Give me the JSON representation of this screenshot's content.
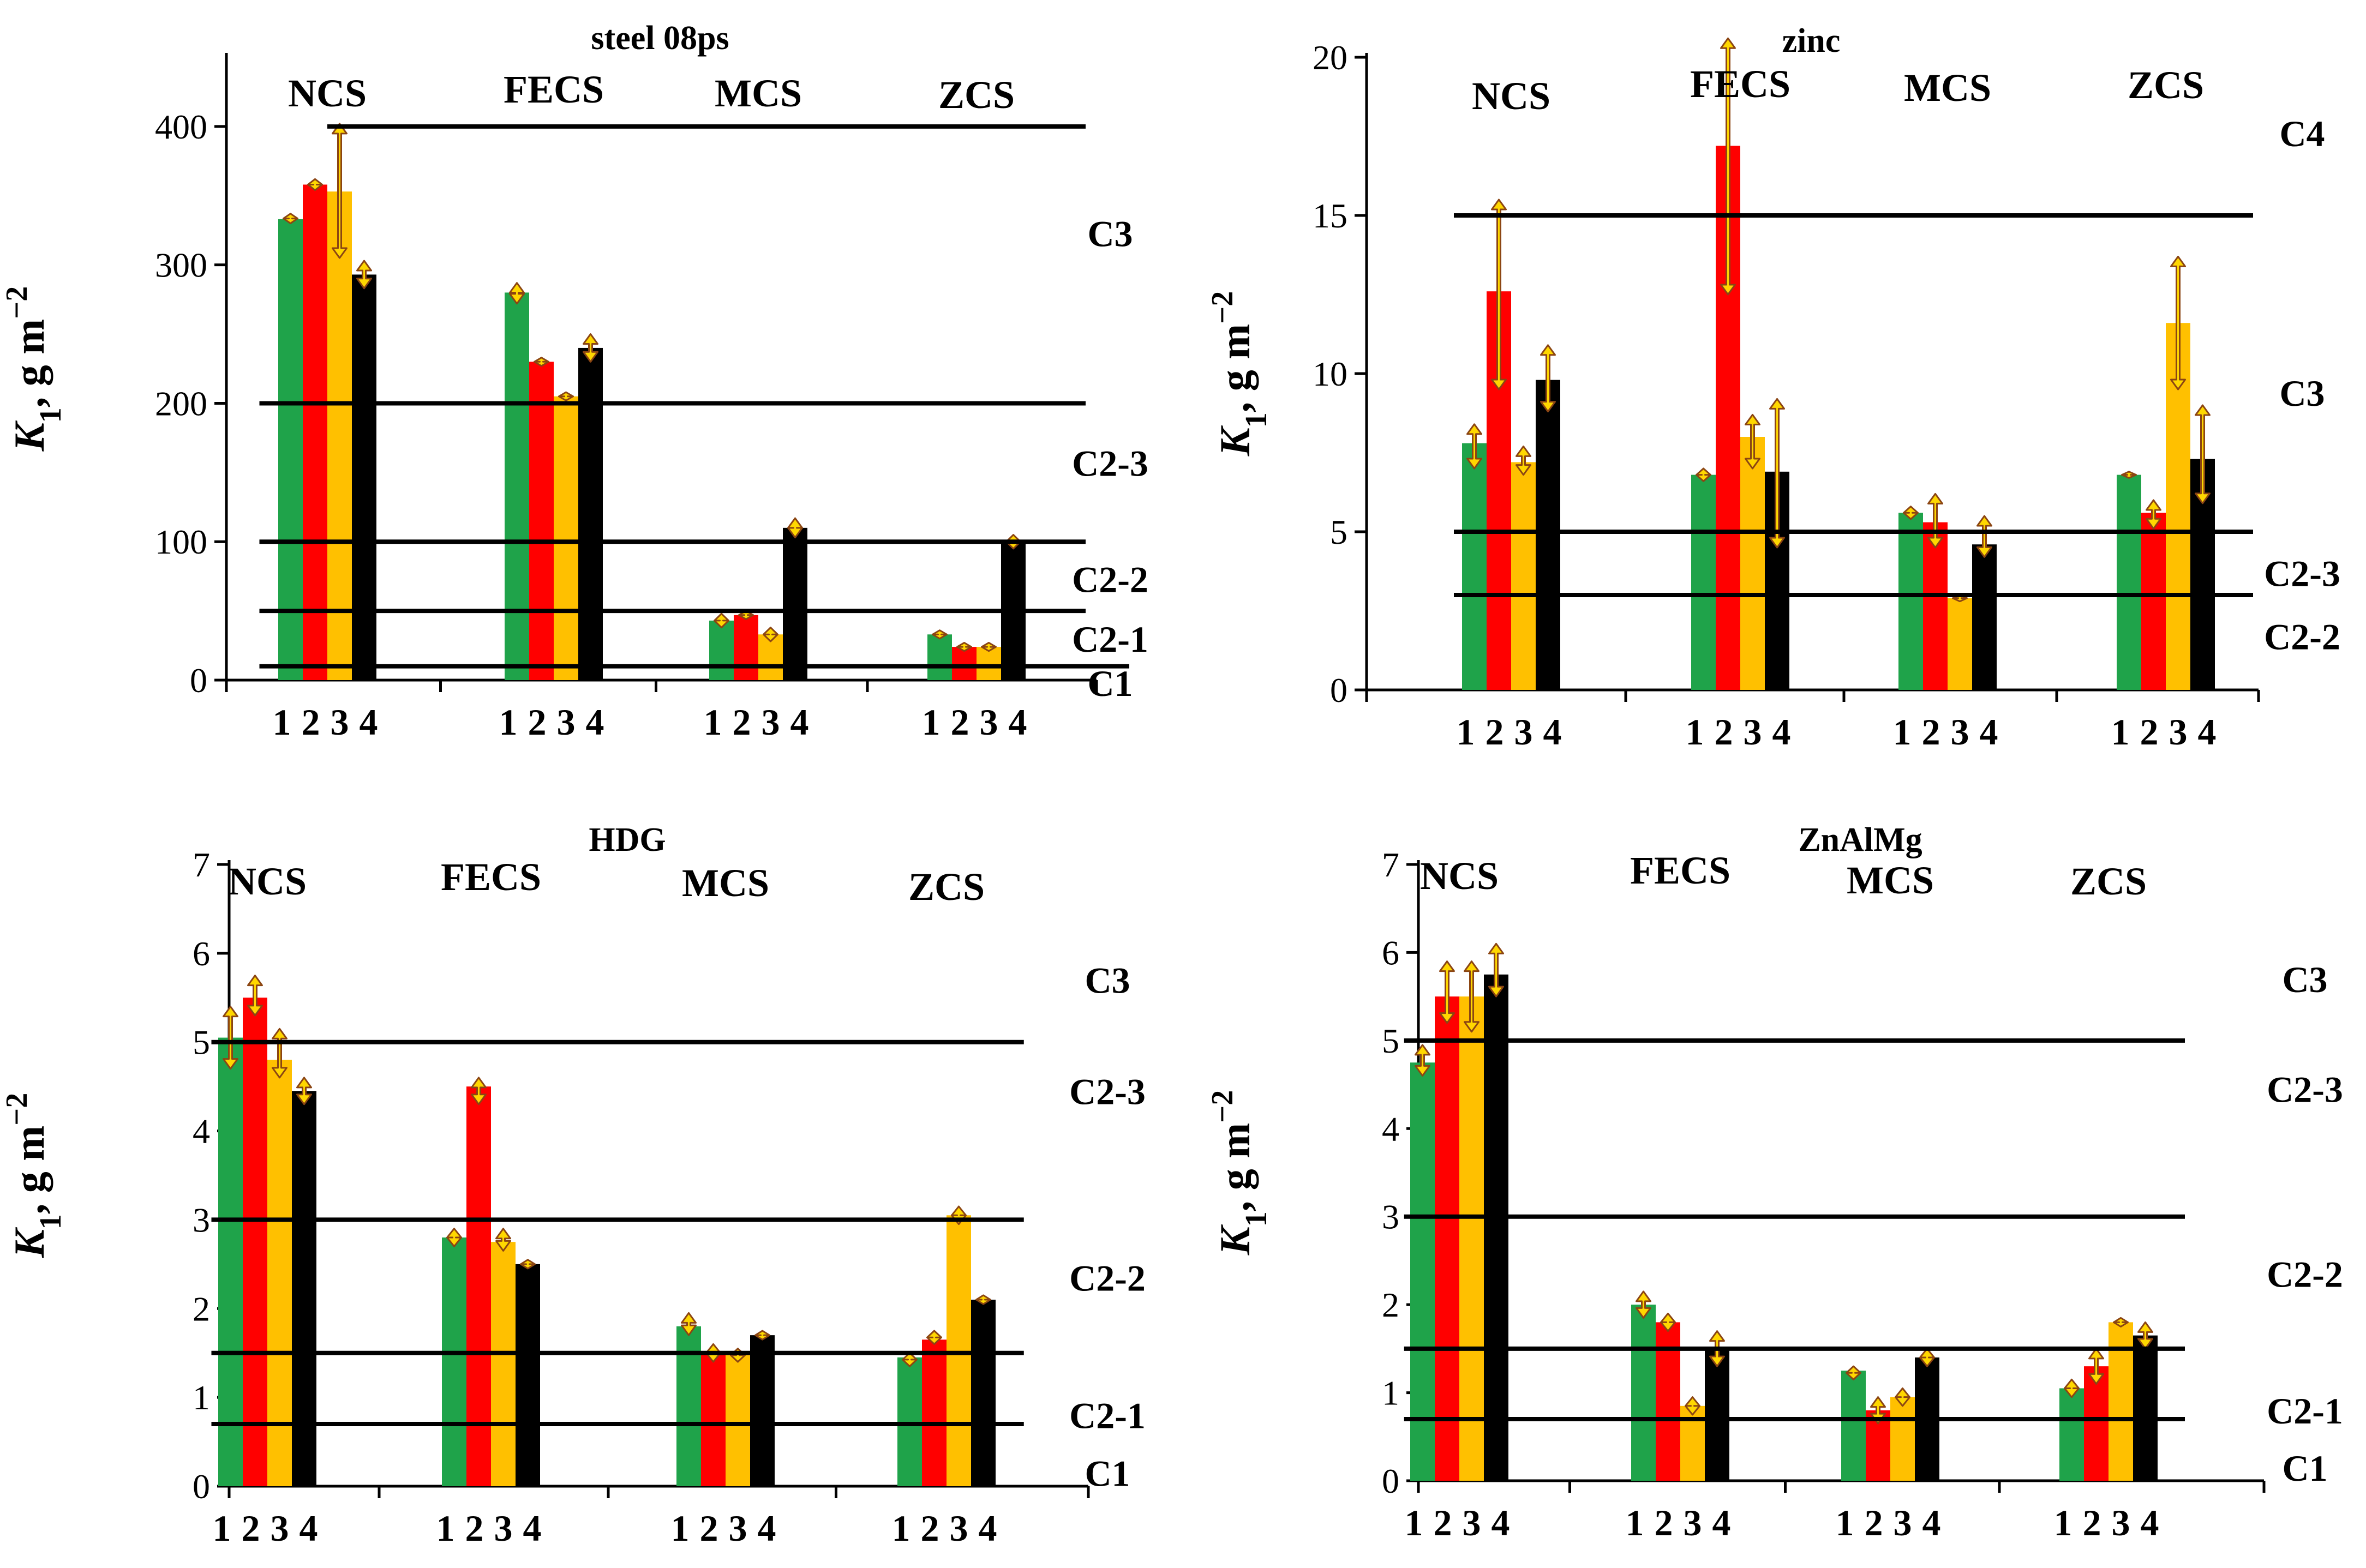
{
  "colors": {
    "series": [
      "#1fa34a",
      "#ff0000",
      "#ffc000",
      "#000000"
    ],
    "arrow_fill": "#ffd700",
    "arrow_stroke": "#8b4513",
    "axis": "#000000",
    "class_line": "#000000"
  },
  "chart_data": [
    {
      "type": "bar",
      "title": "steel 08ps",
      "ylabel_main": "K",
      "ylabel_sub": "1",
      "ylabel_unit": ", g m",
      "ylabel_exp": "−2",
      "ylim": [
        0,
        450
      ],
      "yticks": [
        0,
        100,
        200,
        300,
        400
      ],
      "groups": [
        "NCS",
        "FECS",
        "MCS",
        "ZCS"
      ],
      "series_labels": [
        "1",
        "2",
        "3",
        "4"
      ],
      "values": [
        [
          333,
          358,
          353,
          293
        ],
        [
          280,
          230,
          205,
          240
        ],
        [
          43,
          47,
          33,
          110
        ],
        [
          33,
          24,
          24,
          100
        ]
      ],
      "errors": [
        [
          [
            330,
            337
          ],
          [
            354,
            362
          ],
          [
            305,
            402
          ],
          [
            283,
            303
          ]
        ],
        [
          [
            272,
            287
          ],
          [
            227,
            233
          ],
          [
            202,
            208
          ],
          [
            230,
            250
          ]
        ],
        [
          [
            38,
            48
          ],
          [
            44,
            50
          ],
          [
            28,
            38
          ],
          [
            103,
            117
          ]
        ],
        [
          [
            30,
            36
          ],
          [
            21,
            27
          ],
          [
            21,
            27
          ],
          [
            95,
            105
          ]
        ]
      ],
      "class_lines": [
        {
          "value": 400,
          "x_from": 1.0,
          "x_to": 4.5
        },
        {
          "value": 200,
          "x_from": 0.7,
          "x_to": 4.5
        },
        {
          "value": 100,
          "x_from": 0.7,
          "x_to": 4.5
        },
        {
          "value": 50,
          "x_from": 0.7,
          "x_to": 4.5
        },
        {
          "value": 10,
          "x_from": 0.7,
          "x_to": 4.7
        }
      ],
      "class_labels": [
        {
          "text": "C3",
          "value": 323
        },
        {
          "text": "C2-3",
          "value": 157
        },
        {
          "text": "C2-2",
          "value": 73
        },
        {
          "text": "C2-1",
          "value": 30
        },
        {
          "text": "C1",
          "value": -2
        }
      ]
    },
    {
      "type": "bar",
      "title": "zinc",
      "ylabel_main": "K",
      "ylabel_sub": "1",
      "ylabel_unit": ", g m",
      "ylabel_exp": "−2",
      "ylim": [
        0,
        20
      ],
      "yticks": [
        0,
        5,
        10,
        15,
        20
      ],
      "groups": [
        "NCS",
        "FECS",
        "MCS",
        "ZCS"
      ],
      "series_labels": [
        "1",
        "2",
        "3",
        "4"
      ],
      "values": [
        [
          7.8,
          12.6,
          7.2,
          9.8
        ],
        [
          6.8,
          17.2,
          8.0,
          6.9
        ],
        [
          5.6,
          5.3,
          2.9,
          4.6
        ],
        [
          6.8,
          5.6,
          11.6,
          7.3
        ]
      ],
      "errors": [
        [
          [
            7.0,
            8.4
          ],
          [
            9.5,
            15.5
          ],
          [
            6.8,
            7.7
          ],
          [
            8.8,
            10.9
          ]
        ],
        [
          [
            6.6,
            7.0
          ],
          [
            12.5,
            20.6
          ],
          [
            7.0,
            8.7
          ],
          [
            4.5,
            9.2
          ]
        ],
        [
          [
            5.4,
            5.8
          ],
          [
            4.5,
            6.2
          ],
          [
            2.8,
            3.0
          ],
          [
            4.2,
            5.5
          ]
        ],
        [
          [
            6.7,
            6.9
          ],
          [
            5.1,
            6.0
          ],
          [
            9.5,
            13.7
          ],
          [
            5.9,
            9.0
          ]
        ]
      ],
      "class_lines": [
        {
          "value": 15,
          "x_from": 0.75,
          "x_to": 4.4
        },
        {
          "value": 5,
          "x_from": 0.75,
          "x_to": 4.4
        },
        {
          "value": 3,
          "x_from": 0.75,
          "x_to": 4.4
        }
      ],
      "class_labels": [
        {
          "text": "C4",
          "value": 17.6
        },
        {
          "text": "C3",
          "value": 9.4
        },
        {
          "text": "C2-3",
          "value": 3.7
        },
        {
          "text": "C2-2",
          "value": 1.7
        }
      ]
    },
    {
      "type": "bar",
      "title": "HDG",
      "ylabel_main": "K",
      "ylabel_sub": "1",
      "ylabel_unit": ", g m",
      "ylabel_exp": "−2",
      "ylim": [
        0,
        7
      ],
      "yticks": [
        0,
        1,
        2,
        3,
        4,
        5,
        6,
        7
      ],
      "groups": [
        "NCS",
        "FECS",
        "MCS",
        "ZCS"
      ],
      "series_labels": [
        "1",
        "2",
        "3",
        "4"
      ],
      "values": [
        [
          5.05,
          5.5,
          4.8,
          4.45
        ],
        [
          2.8,
          4.5,
          2.75,
          2.5
        ],
        [
          1.8,
          1.5,
          1.5,
          1.7
        ],
        [
          1.45,
          1.65,
          3.05,
          2.1
        ]
      ],
      "errors": [
        [
          [
            4.7,
            5.4
          ],
          [
            5.3,
            5.75
          ],
          [
            4.6,
            5.15
          ],
          [
            4.3,
            4.6
          ]
        ],
        [
          [
            2.7,
            2.9
          ],
          [
            4.3,
            4.6
          ],
          [
            2.65,
            2.9
          ],
          [
            2.45,
            2.55
          ]
        ],
        [
          [
            1.7,
            1.95
          ],
          [
            1.4,
            1.6
          ],
          [
            1.4,
            1.55
          ],
          [
            1.65,
            1.75
          ]
        ],
        [
          [
            1.35,
            1.5
          ],
          [
            1.6,
            1.75
          ],
          [
            2.95,
            3.15
          ],
          [
            2.05,
            2.15
          ]
        ]
      ],
      "class_lines": [
        {
          "value": 5,
          "x_from": 0.75,
          "x_to": 4.35
        },
        {
          "value": 3,
          "x_from": 0.75,
          "x_to": 4.35
        },
        {
          "value": 1.5,
          "x_from": 0.75,
          "x_to": 4.35
        },
        {
          "value": 0.7,
          "x_from": 0.75,
          "x_to": 4.35
        }
      ],
      "class_labels": [
        {
          "text": "C3",
          "value": 5.7
        },
        {
          "text": "C2-3",
          "value": 4.45
        },
        {
          "text": "C2-2",
          "value": 2.35
        },
        {
          "text": "C2-1",
          "value": 0.8
        },
        {
          "text": "C1",
          "value": 0.15
        }
      ]
    },
    {
      "type": "bar",
      "title": "ZnAlMg",
      "ylabel_main": "K",
      "ylabel_sub": "1",
      "ylabel_unit": ", g m",
      "ylabel_exp": "−2",
      "ylim": [
        0,
        7
      ],
      "yticks": [
        0,
        1,
        2,
        3,
        4,
        5,
        6,
        7
      ],
      "groups": [
        "NCS",
        "FECS",
        "MCS",
        "ZCS"
      ],
      "series_labels": [
        "1",
        "2",
        "3",
        "4"
      ],
      "values": [
        [
          4.75,
          5.5,
          5.5,
          5.75
        ],
        [
          2.0,
          1.8,
          0.85,
          1.5
        ],
        [
          1.25,
          0.8,
          0.95,
          1.4
        ],
        [
          1.05,
          1.3,
          1.8,
          1.65
        ]
      ],
      "errors": [
        [
          [
            4.6,
            4.95
          ],
          [
            5.2,
            5.9
          ],
          [
            5.1,
            5.9
          ],
          [
            5.5,
            6.1
          ]
        ],
        [
          [
            1.85,
            2.15
          ],
          [
            1.7,
            1.9
          ],
          [
            0.75,
            0.95
          ],
          [
            1.3,
            1.7
          ]
        ],
        [
          [
            1.15,
            1.3
          ],
          [
            0.65,
            0.95
          ],
          [
            0.85,
            1.05
          ],
          [
            1.3,
            1.5
          ]
        ],
        [
          [
            0.95,
            1.15
          ],
          [
            1.1,
            1.5
          ],
          [
            1.75,
            1.85
          ],
          [
            1.5,
            1.8
          ]
        ]
      ],
      "class_lines": [
        {
          "value": 5,
          "x_from": 0.75,
          "x_to": 4.35
        },
        {
          "value": 3,
          "x_from": 0.75,
          "x_to": 4.35
        },
        {
          "value": 1.5,
          "x_from": 0.75,
          "x_to": 4.35
        },
        {
          "value": 0.7,
          "x_from": 0.75,
          "x_to": 4.35
        }
      ],
      "class_labels": [
        {
          "text": "C3",
          "value": 5.7
        },
        {
          "text": "C2-3",
          "value": 4.45
        },
        {
          "text": "C2-2",
          "value": 2.35
        },
        {
          "text": "C2-1",
          "value": 0.8
        },
        {
          "text": "C1",
          "value": 0.15
        }
      ]
    }
  ]
}
